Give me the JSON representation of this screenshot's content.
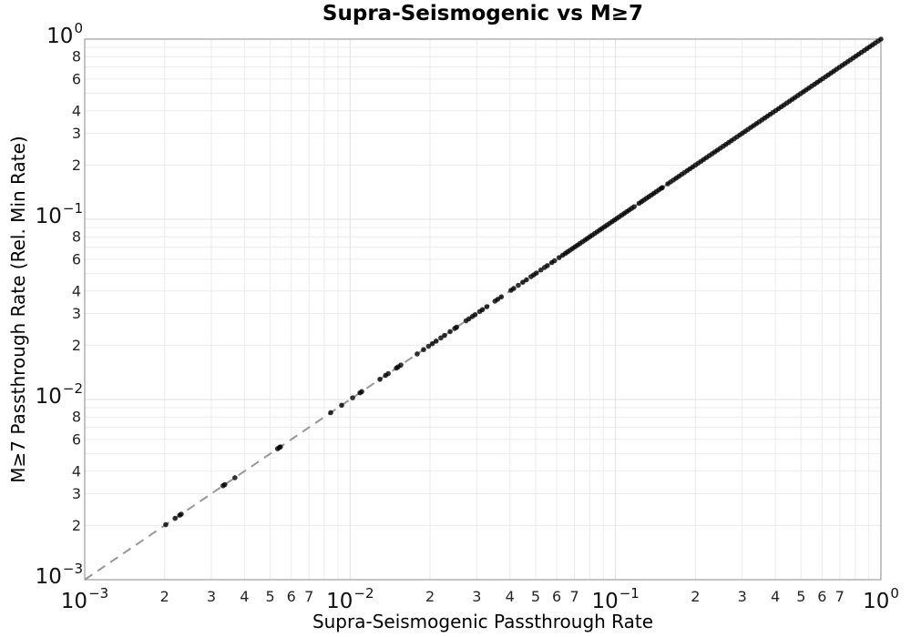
{
  "chart_data": {
    "type": "scatter",
    "title": "Supra-Seismogenic vs M≥7",
    "xlabel": "Supra-Seismogenic Passthrough Rate",
    "ylabel": "M≥7 Passthrough Rate (Rel. Min Rate)",
    "xscale": "log",
    "yscale": "log",
    "xlim": [
      0.001,
      1.0
    ],
    "ylim": [
      0.001,
      1.0
    ],
    "grid": true,
    "legend": false,
    "x_major_ticks": [
      {
        "value": 0.001,
        "mantissa": "10",
        "exponent": "−3"
      },
      {
        "value": 0.01,
        "mantissa": "10",
        "exponent": "−2"
      },
      {
        "value": 0.1,
        "mantissa": "10",
        "exponent": "−1"
      },
      {
        "value": 1.0,
        "mantissa": "10",
        "exponent": "0"
      }
    ],
    "y_major_ticks": [
      {
        "value": 1.0,
        "mantissa": "10",
        "exponent": "0"
      },
      {
        "value": 0.1,
        "mantissa": "10",
        "exponent": "−1"
      },
      {
        "value": 0.01,
        "mantissa": "10",
        "exponent": "−2"
      },
      {
        "value": 0.001,
        "mantissa": "10",
        "exponent": "−3"
      }
    ],
    "x_minor_labels": {
      "decades": [
        -3,
        -2,
        -1
      ],
      "multiples": [
        2,
        3,
        4,
        5,
        6,
        7
      ]
    },
    "y_minor_labels": {
      "decades": [
        -1,
        -2,
        -3
      ],
      "multiples": [
        8,
        6,
        4,
        3,
        2
      ]
    },
    "minor_grid_multiples": [
      2,
      3,
      4,
      5,
      6,
      7,
      8,
      9
    ],
    "reference_line": {
      "style": "dashed",
      "color": "#979797",
      "width": 2,
      "dash": [
        10,
        7
      ],
      "from": [
        0.001,
        0.001
      ],
      "to": [
        1.0,
        1.0
      ],
      "meaning": "y = x identity line"
    },
    "series": [
      {
        "name": "points",
        "marker": "circle",
        "marker_radius_px": 2.8,
        "color": "#000000",
        "opacity": 0.8,
        "y_rule": "y = x (all points lie on the identity line)",
        "x": [
          0.00202,
          0.00219,
          0.00228,
          0.00231,
          0.00332,
          0.00337,
          0.00368,
          0.00533,
          0.00541,
          0.00546,
          0.00845,
          0.00929,
          0.01022,
          0.01089,
          0.01106,
          0.01295,
          0.0136,
          0.01392,
          0.01494,
          0.01517,
          0.01553,
          0.01789,
          0.01891,
          0.01974,
          0.02041,
          0.02109,
          0.02196,
          0.02268,
          0.02381,
          0.02478,
          0.02518,
          0.02732,
          0.028,
          0.02888,
          0.02957,
          0.03076,
          0.03149,
          0.03275,
          0.03513,
          0.03597,
          0.03712,
          0.04037,
          0.04134,
          0.04301,
          0.04474,
          0.04617,
          0.04802,
          0.04916,
          0.05034,
          0.05235,
          0.05403,
          0.05533,
          0.05755,
          0.05892,
          0.06128,
          0.06325,
          0.06476,
          0.066,
          0.0674,
          0.0689,
          0.0704,
          0.0719,
          0.0734,
          0.075,
          0.0767,
          0.0783,
          0.08,
          0.0817,
          0.0835,
          0.0853,
          0.0872,
          0.089,
          0.091,
          0.0929,
          0.0949,
          0.097,
          0.0991,
          0.1012,
          0.1034,
          0.1056,
          0.1079,
          0.1103,
          0.1126,
          0.1151,
          0.1175,
          0.1227,
          0.1253,
          0.128,
          0.1308,
          0.1336,
          0.1365,
          0.1394,
          0.1424,
          0.1455,
          0.1486,
          0.15,
          0.1574,
          0.1612,
          0.1651,
          0.1691,
          0.1732,
          0.1774,
          0.1817,
          0.1862,
          0.1907,
          0.1953,
          0.2001,
          0.2049,
          0.2099,
          0.215,
          0.2202,
          0.2256,
          0.2311,
          0.2367,
          0.2424,
          0.2483,
          0.2544,
          0.2605,
          0.2669,
          0.2734,
          0.28,
          0.2868,
          0.2938,
          0.3009,
          0.3082,
          0.3157,
          0.3234,
          0.3313,
          0.3393,
          0.3476,
          0.356,
          0.3647,
          0.3735,
          0.3826,
          0.3919,
          0.4014,
          0.4112,
          0.4212,
          0.4314,
          0.4419,
          0.4526,
          0.4636,
          0.4749,
          0.4864,
          0.4982,
          0.5103,
          0.5227,
          0.5354,
          0.5484,
          0.5618,
          0.5754,
          0.5894,
          0.6037,
          0.6184,
          0.6334,
          0.6488,
          0.6646,
          0.6807,
          0.6973,
          0.7142,
          0.7316,
          0.7494,
          0.7676,
          0.7862,
          0.8053,
          0.8249,
          0.8449,
          0.8655,
          0.8865,
          0.908,
          0.9301,
          0.9527,
          0.9758,
          1.0
        ]
      }
    ],
    "colors": {
      "grid_major": "#e0e0e0",
      "grid_minor": "#ececec",
      "spine": "#8a8a8a",
      "points": "#000000",
      "dashed_line": "#979797",
      "major_tick_text": "#111111",
      "minor_tick_text": "#262626"
    }
  }
}
